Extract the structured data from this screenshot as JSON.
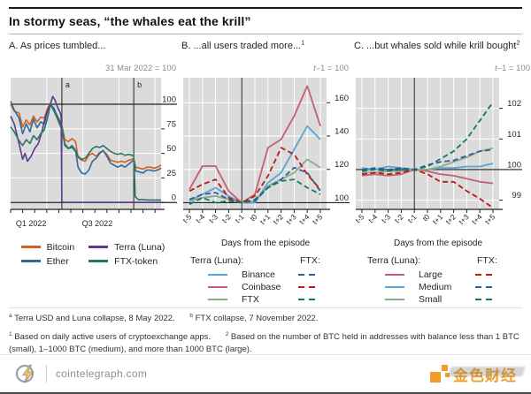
{
  "header": {
    "title": "In stormy seas, “the whales eat the krill”"
  },
  "style": {
    "plot_bg": "#dbdbdb",
    "axis_color": "#222222",
    "accent_orange": "#ef9d28"
  },
  "chart_data": [
    {
      "type": "line",
      "title": "A. As prices tumbled...",
      "note": "31 Mar 2022 = 100",
      "xlim": [
        0,
        12.5
      ],
      "x_gridlines": [
        3,
        6,
        9,
        12
      ],
      "x_minor_ticks": [
        0,
        1,
        2,
        3,
        4,
        5,
        6,
        7,
        8,
        9,
        10,
        11,
        12
      ],
      "x_tick_labels": [
        {
          "pos": 1.7,
          "label": "Q1 2022"
        },
        {
          "pos": 7.2,
          "label": "Q3 2022"
        }
      ],
      "ylim": [
        -7,
        127
      ],
      "y_ticks": [
        0,
        25,
        50,
        75,
        100
      ],
      "ref_lines": [
        100,
        0
      ],
      "grid": true,
      "legend_position": "bottom",
      "events": [
        {
          "label": "a",
          "x": 4.26
        },
        {
          "label": "b",
          "x": 10.23
        }
      ],
      "series": [
        {
          "name": "Bitcoin",
          "color": "#d2601e",
          "dash": false,
          "width": 1.6,
          "points": [
            [
              0,
              100
            ],
            [
              0.3,
              93
            ],
            [
              0.7,
              91
            ],
            [
              1,
              77
            ],
            [
              1.3,
              84
            ],
            [
              1.6,
              79
            ],
            [
              1.9,
              88
            ],
            [
              2.2,
              82
            ],
            [
              2.5,
              87
            ],
            [
              2.8,
              86
            ],
            [
              3.1,
              97
            ],
            [
              3.3,
              100
            ],
            [
              3.6,
              94
            ],
            [
              3.9,
              88
            ],
            [
              4.26,
              79
            ],
            [
              4.5,
              64
            ],
            [
              4.8,
              62
            ],
            [
              5.1,
              65
            ],
            [
              5.4,
              62
            ],
            [
              5.6,
              46
            ],
            [
              5.9,
              43
            ],
            [
              6.2,
              42
            ],
            [
              6.5,
              48
            ],
            [
              6.8,
              50
            ],
            [
              7.1,
              47
            ],
            [
              7.4,
              51
            ],
            [
              7.7,
              52
            ],
            [
              8,
              49
            ],
            [
              8.3,
              43
            ],
            [
              8.6,
              42
            ],
            [
              8.9,
              41
            ],
            [
              9.2,
              42
            ],
            [
              9.5,
              41
            ],
            [
              9.8,
              43
            ],
            [
              10.1,
              44
            ],
            [
              10.23,
              45
            ],
            [
              10.4,
              36
            ],
            [
              10.7,
              35
            ],
            [
              11,
              34
            ],
            [
              11.3,
              36
            ],
            [
              11.6,
              36
            ],
            [
              11.9,
              35
            ],
            [
              12.2,
              36
            ],
            [
              12.5,
              38
            ]
          ]
        },
        {
          "name": "Ether",
          "color": "#31699a",
          "dash": false,
          "width": 1.6,
          "points": [
            [
              0,
              103
            ],
            [
              0.3,
              94
            ],
            [
              0.7,
              86
            ],
            [
              1,
              70
            ],
            [
              1.3,
              80
            ],
            [
              1.6,
              72
            ],
            [
              1.9,
              85
            ],
            [
              2.2,
              76
            ],
            [
              2.5,
              82
            ],
            [
              2.8,
              80
            ],
            [
              3.1,
              95
            ],
            [
              3.3,
              100
            ],
            [
              3.6,
              96
            ],
            [
              3.9,
              87
            ],
            [
              4.26,
              77
            ],
            [
              4.5,
              58
            ],
            [
              4.8,
              55
            ],
            [
              5.1,
              58
            ],
            [
              5.4,
              53
            ],
            [
              5.6,
              36
            ],
            [
              5.9,
              30
            ],
            [
              6.2,
              29
            ],
            [
              6.5,
              33
            ],
            [
              6.8,
              42
            ],
            [
              7.1,
              45
            ],
            [
              7.4,
              50
            ],
            [
              7.7,
              53
            ],
            [
              8,
              47
            ],
            [
              8.3,
              40
            ],
            [
              8.6,
              38
            ],
            [
              8.9,
              36
            ],
            [
              9.2,
              38
            ],
            [
              9.5,
              36
            ],
            [
              9.8,
              39
            ],
            [
              10.1,
              42
            ],
            [
              10.23,
              43
            ],
            [
              10.4,
              32
            ],
            [
              10.7,
              31
            ],
            [
              11,
              30
            ],
            [
              11.3,
              33
            ],
            [
              11.6,
              33
            ],
            [
              11.9,
              32
            ],
            [
              12.2,
              33
            ],
            [
              12.5,
              35
            ]
          ]
        },
        {
          "name": "Terra (Luna)",
          "color": "#5e3a8c",
          "dash": false,
          "width": 1.6,
          "points": [
            [
              0,
              88
            ],
            [
              0.3,
              80
            ],
            [
              0.7,
              60
            ],
            [
              1,
              44
            ],
            [
              1.2,
              50
            ],
            [
              1.4,
              42
            ],
            [
              1.7,
              47
            ],
            [
              2,
              55
            ],
            [
              2.3,
              60
            ],
            [
              2.6,
              72
            ],
            [
              2.9,
              88
            ],
            [
              3.1,
              95
            ],
            [
              3.3,
              100
            ],
            [
              3.5,
              108
            ],
            [
              3.7,
              104
            ],
            [
              3.9,
              97
            ],
            [
              4.1,
              92
            ],
            [
              4.2,
              88
            ],
            [
              4.26,
              0.5
            ],
            [
              4.5,
              0.2
            ],
            [
              12.5,
              0.2
            ]
          ]
        },
        {
          "name": "FTX-token",
          "color": "#2a746a",
          "dash": false,
          "width": 1.6,
          "points": [
            [
              0,
              77
            ],
            [
              0.3,
              72
            ],
            [
              0.7,
              63
            ],
            [
              1,
              58
            ],
            [
              1.3,
              64
            ],
            [
              1.6,
              60
            ],
            [
              1.9,
              68
            ],
            [
              2.2,
              64
            ],
            [
              2.5,
              70
            ],
            [
              2.8,
              74
            ],
            [
              3.1,
              88
            ],
            [
              3.3,
              100
            ],
            [
              3.6,
              93
            ],
            [
              3.9,
              85
            ],
            [
              4.26,
              74
            ],
            [
              4.5,
              60
            ],
            [
              4.8,
              55
            ],
            [
              5.1,
              56
            ],
            [
              5.4,
              52
            ],
            [
              5.6,
              47
            ],
            [
              5.9,
              44
            ],
            [
              6.2,
              45
            ],
            [
              6.5,
              50
            ],
            [
              6.8,
              55
            ],
            [
              7.1,
              57
            ],
            [
              7.4,
              56
            ],
            [
              7.7,
              58
            ],
            [
              8,
              55
            ],
            [
              8.3,
              52
            ],
            [
              8.6,
              50
            ],
            [
              8.9,
              49
            ],
            [
              9.2,
              50
            ],
            [
              9.5,
              48
            ],
            [
              9.8,
              49
            ],
            [
              10.1,
              48
            ],
            [
              10.23,
              47
            ],
            [
              10.35,
              6
            ],
            [
              10.6,
              3
            ],
            [
              11,
              3
            ],
            [
              11.5,
              2.5
            ],
            [
              12,
              2.5
            ],
            [
              12.5,
              2.5
            ]
          ]
        }
      ],
      "legend": {
        "items": [
          {
            "label": "Bitcoin"
          },
          {
            "label": "Ether"
          },
          {
            "label": "Terra (Luna)"
          },
          {
            "label": "FTX-token"
          }
        ]
      }
    },
    {
      "type": "line",
      "title": "B. ...all users traded more...",
      "title_sup": "1",
      "note_i": "t",
      "note_rest": "–1 = 100",
      "categories": [
        "t-5",
        "t-4",
        "t-3",
        "t-2",
        "t-1",
        "t0",
        "t+1",
        "t+2",
        "t+3",
        "t+4",
        "t+5"
      ],
      "xlabel": "Days from the episode",
      "ylim": [
        96,
        175
      ],
      "y_ticks": [
        100,
        120,
        140,
        160
      ],
      "ref_lines": [
        100
      ],
      "grid": true,
      "event_index": 4,
      "series": [
        {
          "name": "Binance (Terra Luna episode)",
          "color": "#5ba4d4",
          "dash": false,
          "values": [
            101,
            105,
            109,
            104,
            100,
            100,
            112,
            118,
            132,
            146,
            138
          ]
        },
        {
          "name": "Coinbase (Terra Luna episode)",
          "color": "#c55e72",
          "dash": false,
          "values": [
            108,
            122,
            122,
            107,
            100,
            105,
            133,
            138,
            152,
            170,
            146
          ]
        },
        {
          "name": "FTX (Terra Luna episode)",
          "color": "#8cab88",
          "dash": false,
          "values": [
            101,
            103,
            104,
            102,
            100,
            101,
            110,
            114,
            118,
            126,
            121
          ]
        },
        {
          "name": "Binance (FTX episode)",
          "color": "#27609f",
          "dash": true,
          "values": [
            102,
            105,
            106,
            102,
            100,
            101,
            109,
            114,
            121,
            118,
            107
          ]
        },
        {
          "name": "Coinbase (FTX episode)",
          "color": "#bb1a17",
          "dash": true,
          "values": [
            107,
            111,
            114,
            103,
            100,
            104,
            116,
            133,
            129,
            117,
            108
          ]
        },
        {
          "name": "FTX (FTX episode)",
          "color": "#0f7a69",
          "dash": true,
          "values": [
            99,
            103,
            100,
            101,
            100,
            102,
            109,
            113,
            114,
            109,
            105
          ]
        }
      ],
      "legend": {
        "headers": [
          "Terra (Luna):",
          "FTX:"
        ],
        "rows": [
          "Binance",
          "Coinbase",
          "FTX"
        ]
      }
    },
    {
      "type": "line",
      "title": "C. ...but whales sold while krill bought",
      "title_sup": "2",
      "note_i": "t",
      "note_rest": "–1 = 100",
      "categories": [
        "t-5",
        "t-4",
        "t-3",
        "t-2",
        "t-1",
        "t0",
        "t+1",
        "t+2",
        "t+3",
        "t+4",
        "t+5"
      ],
      "xlabel": "Days from the episode",
      "ylim": [
        98.7,
        103
      ],
      "y_ticks": [
        99,
        100,
        101,
        102
      ],
      "ref_lines": [
        100
      ],
      "grid": true,
      "event_index": 4,
      "series": [
        {
          "name": "Large (Terra Luna episode)",
          "color": "#c55e72",
          "dash": false,
          "values": [
            99.8,
            99.85,
            99.8,
            99.85,
            100,
            99.95,
            99.85,
            99.8,
            99.7,
            99.6,
            99.55
          ]
        },
        {
          "name": "Medium (Terra Luna episode)",
          "color": "#5ba4d4",
          "dash": false,
          "values": [
            100.05,
            100,
            100.1,
            100.05,
            100,
            100,
            100.05,
            100.05,
            100.1,
            100.1,
            100.2
          ]
        },
        {
          "name": "Small (Terra Luna episode)",
          "color": "#8cab88",
          "dash": false,
          "values": [
            99.9,
            99.9,
            99.95,
            99.95,
            100,
            100,
            100.1,
            100.25,
            100.4,
            100.6,
            100.7
          ]
        },
        {
          "name": "Large (FTX episode)",
          "color": "#bb1a17",
          "dash": true,
          "values": [
            99.85,
            99.9,
            99.85,
            99.9,
            100,
            99.85,
            99.6,
            99.6,
            99.3,
            99.05,
            98.75
          ]
        },
        {
          "name": "Medium (FTX episode)",
          "color": "#27609f",
          "dash": true,
          "values": [
            100,
            100.05,
            100,
            100.05,
            100,
            100.15,
            100.25,
            100.3,
            100.45,
            100.6,
            100.65
          ]
        },
        {
          "name": "Small (FTX episode)",
          "color": "#0f7a69",
          "dash": true,
          "values": [
            99.95,
            100,
            99.95,
            100,
            100,
            100.1,
            100.35,
            100.6,
            101,
            101.6,
            102.2
          ]
        }
      ],
      "legend": {
        "headers": [
          "Terra (Luna):",
          "FTX:"
        ],
        "rows": [
          "Large",
          "Medium",
          "Small"
        ]
      }
    }
  ],
  "footnotes": {
    "a": {
      "marker": "a",
      "text": "Terra USD and Luna collapse, 8 May 2022."
    },
    "b": {
      "marker": "b",
      "text": "FTX collapse, 7 November 2022."
    },
    "f1": {
      "marker": "1",
      "text": "Based on daily active users of cryptoexchange apps."
    },
    "f2": {
      "marker": "2",
      "text": "Based on the number of BTC held in addresses with balance less than 1 BTC (small), 1–1000 BTC (medium), and more than 1000 BTC (large)."
    }
  },
  "footer": {
    "left_domain": "cointelegraph.com",
    "right_logo_text": "金色财经"
  }
}
